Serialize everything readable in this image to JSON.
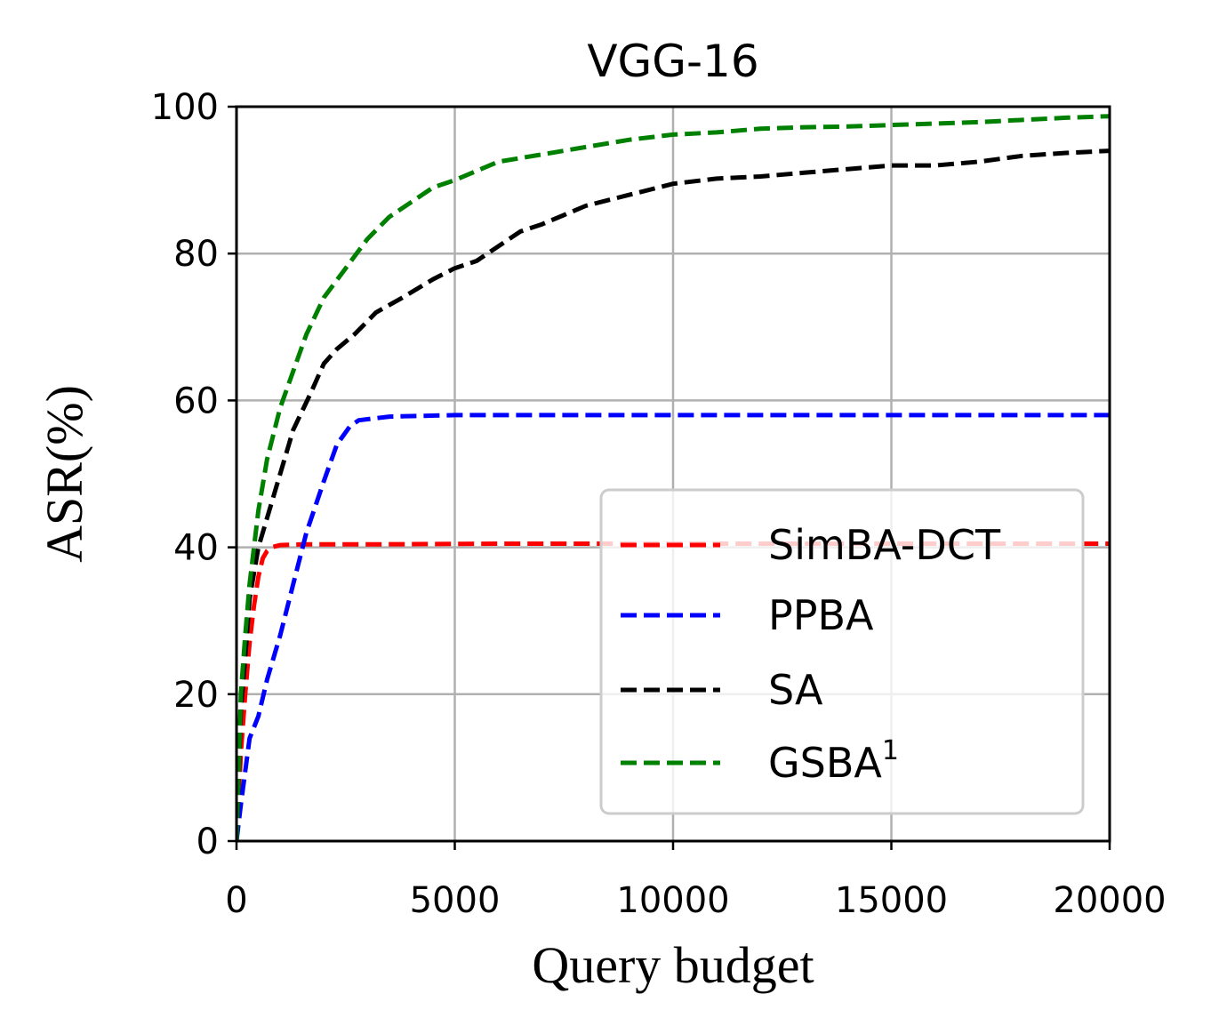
{
  "chart_data": {
    "type": "line",
    "title": "VGG-16",
    "xlabel": "Query budget",
    "ylabel": "ASR(%)",
    "xlim": [
      0,
      20000
    ],
    "ylim": [
      0,
      100
    ],
    "xticks": [
      0,
      5000,
      10000,
      15000,
      20000
    ],
    "xtick_labels": [
      "0",
      "5000",
      "10000",
      "15000",
      "20000"
    ],
    "yticks": [
      0,
      20,
      40,
      60,
      80,
      100
    ],
    "ytick_labels": [
      "0",
      "20",
      "40",
      "60",
      "80",
      "100"
    ],
    "grid": true,
    "legend_position": "lower-right",
    "series": [
      {
        "name": "SimBA-DCT",
        "color": "#ff0000",
        "x": [
          0,
          100,
          200,
          300,
          400,
          500,
          600,
          700,
          800,
          1000,
          1500,
          3000,
          6000,
          10000,
          15000,
          20000
        ],
        "y": [
          0,
          12,
          20,
          27,
          32,
          36,
          38.5,
          39.5,
          40,
          40.3,
          40.4,
          40.4,
          40.5,
          40.5,
          40.5,
          40.5
        ]
      },
      {
        "name": "PPBA",
        "color": "#0000ff",
        "x": [
          0,
          100,
          300,
          500,
          700,
          1000,
          1300,
          1600,
          2000,
          2300,
          2600,
          2800,
          3500,
          5000,
          10000,
          15000,
          20000
        ],
        "y": [
          0,
          5,
          14,
          17,
          22,
          28,
          35,
          42,
          49,
          54,
          56.5,
          57.3,
          57.8,
          58,
          58,
          58,
          58
        ]
      },
      {
        "name": "SA",
        "color": "#000000",
        "x": [
          0,
          100,
          200,
          300,
          500,
          700,
          1000,
          1300,
          1700,
          2000,
          2300,
          2700,
          3200,
          3800,
          4500,
          5000,
          5500,
          6000,
          6500,
          7000,
          8000,
          9000,
          10000,
          11000,
          12000,
          13000,
          14000,
          15000,
          16000,
          17000,
          18000,
          19000,
          20000
        ],
        "y": [
          0,
          18,
          25,
          33,
          40,
          44,
          50,
          56,
          61,
          65,
          67,
          69,
          72,
          74,
          76.5,
          78,
          79,
          81,
          83,
          84,
          86.5,
          88,
          89.5,
          90.2,
          90.5,
          91,
          91.5,
          92,
          92,
          92.5,
          93.3,
          93.7,
          94
        ]
      },
      {
        "name": "GSBA$^1$",
        "display_name": "GSBA",
        "superscript": "1",
        "color": "#008000",
        "x": [
          0,
          100,
          200,
          300,
          500,
          700,
          1000,
          1300,
          1600,
          2000,
          2500,
          3000,
          3500,
          4000,
          4500,
          5000,
          6000,
          7000,
          8000,
          9000,
          10000,
          11000,
          12000,
          13000,
          14000,
          15000,
          16000,
          17000,
          18000,
          19000,
          20000
        ],
        "y": [
          0,
          20,
          28,
          35,
          45,
          52,
          59,
          64,
          69,
          74,
          78,
          82,
          85,
          87,
          89,
          90,
          92.5,
          93.5,
          94.5,
          95.5,
          96.2,
          96.5,
          97,
          97.2,
          97.3,
          97.5,
          97.7,
          97.9,
          98.2,
          98.5,
          98.7
        ]
      }
    ]
  }
}
